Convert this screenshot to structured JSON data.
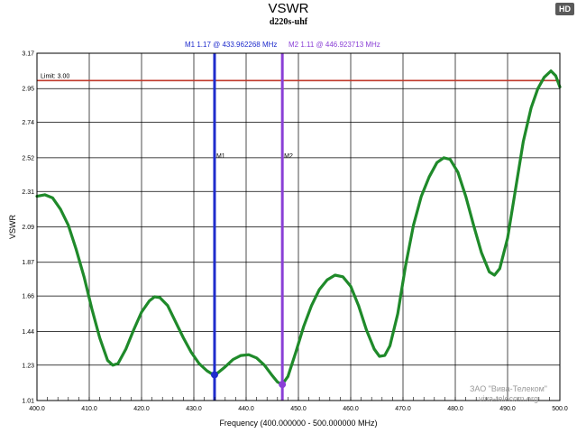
{
  "badge": "HD",
  "chart_data": {
    "type": "line",
    "title": "VSWR",
    "subtitle": "d220s-uhf",
    "xlabel": "Frequency (400.000000 - 500.000000 MHz)",
    "ylabel": "VSWR",
    "xlim": [
      400,
      500
    ],
    "ylim": [
      1.01,
      3.17
    ],
    "x_ticks": [
      400,
      410,
      420,
      430,
      440,
      450,
      460,
      470,
      480,
      490,
      500
    ],
    "x_tick_labels": [
      "400.0",
      "410.0",
      "420.0",
      "430.0",
      "440.0",
      "450.0",
      "460.0",
      "470.0",
      "480.0",
      "490.0",
      "500.0"
    ],
    "y_ticks": [
      1.01,
      1.23,
      1.44,
      1.66,
      1.87,
      2.09,
      2.31,
      2.52,
      2.74,
      2.95,
      3.17
    ],
    "y_tick_labels": [
      "1.01",
      "1.23",
      "1.44",
      "1.66",
      "1.87",
      "2.09",
      "2.31",
      "2.52",
      "2.74",
      "2.95",
      "3.17"
    ],
    "grid": true,
    "limit": {
      "label": "Limit: 3.00",
      "value": 3.0,
      "color": "#c0392b"
    },
    "markers": [
      {
        "label": "M1",
        "header": "M1  1.17 @ 433.962268 MHz",
        "x": 433.962268,
        "y": 1.17,
        "color": "#1f2ccc"
      },
      {
        "label": "M2",
        "header": "M2  1.11 @ 446.923713 MHz",
        "x": 446.923713,
        "y": 1.11,
        "color": "#8a3fd6"
      }
    ],
    "series": [
      {
        "color": "#1f8a2a",
        "points": [
          [
            400.0,
            2.28
          ],
          [
            401.5,
            2.29
          ],
          [
            403.0,
            2.27
          ],
          [
            404.5,
            2.2
          ],
          [
            406.0,
            2.1
          ],
          [
            407.5,
            1.95
          ],
          [
            409.0,
            1.78
          ],
          [
            410.5,
            1.58
          ],
          [
            412.0,
            1.4
          ],
          [
            413.5,
            1.26
          ],
          [
            414.5,
            1.23
          ],
          [
            415.5,
            1.24
          ],
          [
            417.0,
            1.33
          ],
          [
            418.5,
            1.45
          ],
          [
            420.0,
            1.56
          ],
          [
            421.5,
            1.63
          ],
          [
            422.5,
            1.655
          ],
          [
            423.5,
            1.65
          ],
          [
            425.0,
            1.6
          ],
          [
            426.5,
            1.5
          ],
          [
            428.0,
            1.4
          ],
          [
            429.5,
            1.31
          ],
          [
            431.0,
            1.24
          ],
          [
            432.5,
            1.195
          ],
          [
            433.5,
            1.175
          ],
          [
            434.5,
            1.18
          ],
          [
            436.0,
            1.22
          ],
          [
            437.5,
            1.265
          ],
          [
            439.0,
            1.29
          ],
          [
            440.5,
            1.295
          ],
          [
            442.0,
            1.275
          ],
          [
            443.5,
            1.23
          ],
          [
            445.0,
            1.165
          ],
          [
            446.0,
            1.125
          ],
          [
            446.9,
            1.11
          ],
          [
            448.0,
            1.16
          ],
          [
            449.5,
            1.31
          ],
          [
            451.0,
            1.47
          ],
          [
            452.5,
            1.6
          ],
          [
            454.0,
            1.7
          ],
          [
            455.5,
            1.76
          ],
          [
            457.0,
            1.79
          ],
          [
            458.5,
            1.78
          ],
          [
            460.0,
            1.72
          ],
          [
            461.5,
            1.6
          ],
          [
            463.0,
            1.45
          ],
          [
            464.5,
            1.33
          ],
          [
            465.5,
            1.285
          ],
          [
            466.5,
            1.29
          ],
          [
            467.5,
            1.35
          ],
          [
            469.0,
            1.55
          ],
          [
            470.5,
            1.85
          ],
          [
            472.0,
            2.1
          ],
          [
            473.5,
            2.28
          ],
          [
            475.0,
            2.4
          ],
          [
            476.5,
            2.49
          ],
          [
            477.8,
            2.52
          ],
          [
            479.0,
            2.51
          ],
          [
            480.5,
            2.43
          ],
          [
            482.0,
            2.28
          ],
          [
            483.5,
            2.1
          ],
          [
            485.0,
            1.93
          ],
          [
            486.5,
            1.81
          ],
          [
            487.5,
            1.79
          ],
          [
            488.5,
            1.83
          ],
          [
            490.0,
            2.02
          ],
          [
            491.5,
            2.32
          ],
          [
            493.0,
            2.62
          ],
          [
            494.5,
            2.83
          ],
          [
            495.8,
            2.95
          ],
          [
            497.0,
            3.02
          ],
          [
            498.3,
            3.06
          ],
          [
            499.2,
            3.03
          ],
          [
            500.0,
            2.96
          ]
        ]
      }
    ]
  },
  "watermark": {
    "line1": "ЗАО \"Вива-Телеком\"",
    "line2": "viva-telecom.org"
  }
}
